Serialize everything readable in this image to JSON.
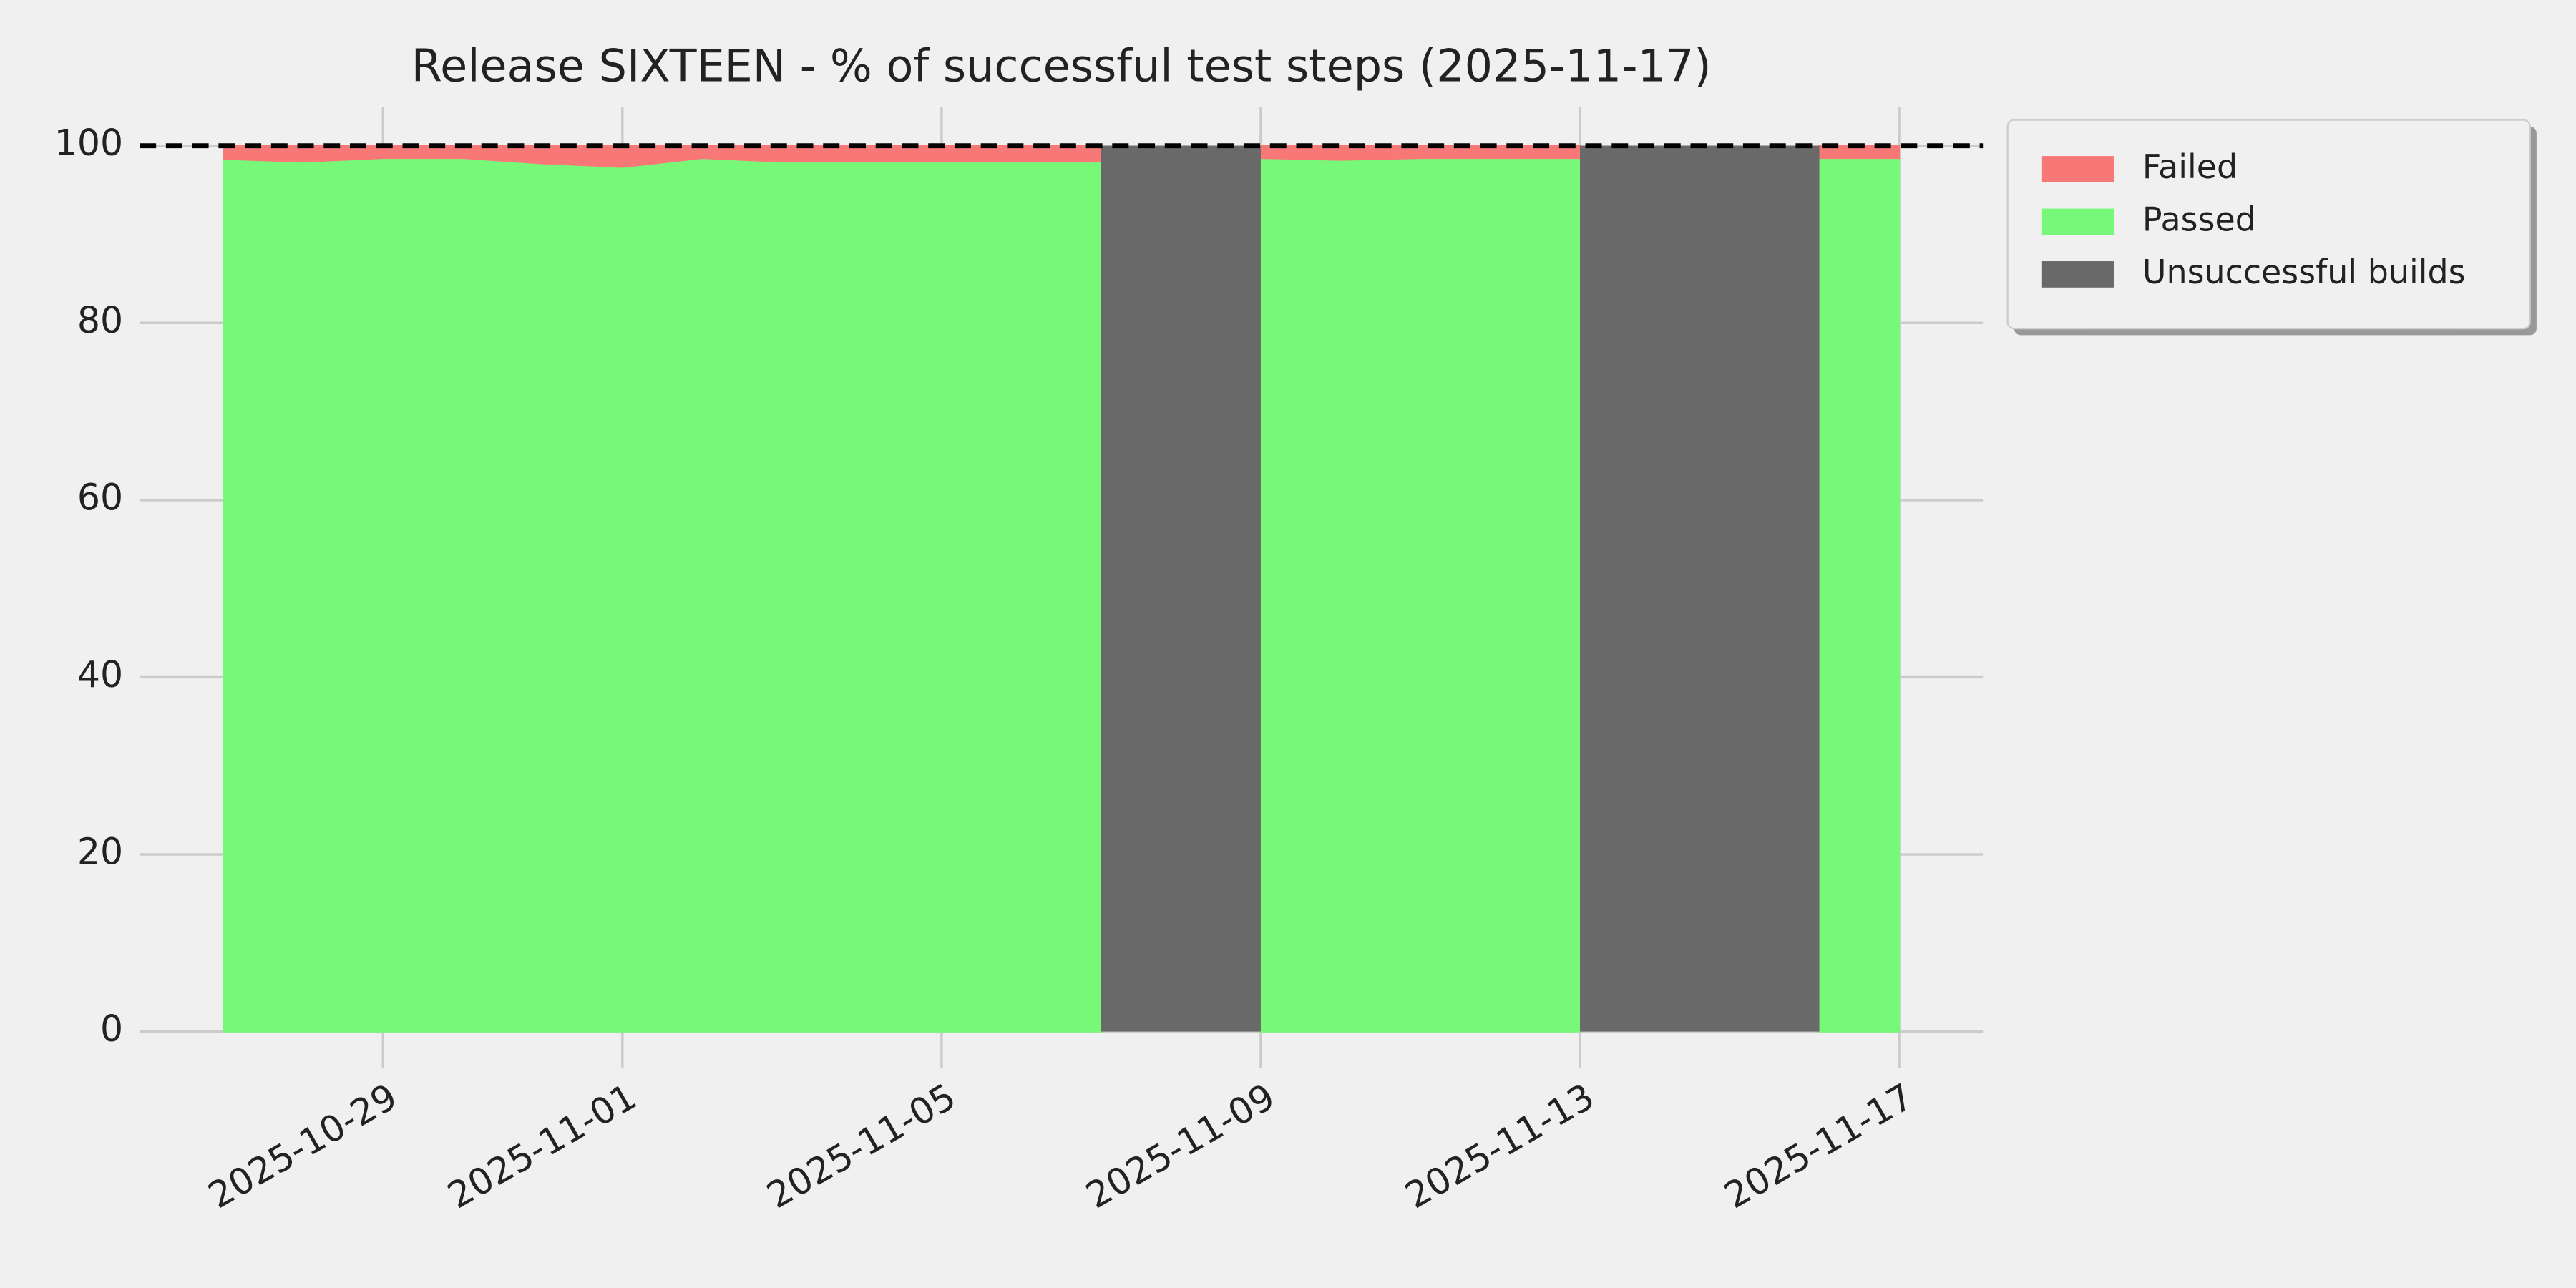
{
  "chart_data": {
    "type": "stacked_area",
    "title": "Release SIXTEEN - % of successful test steps (2025-11-17)",
    "x": [
      "2025-10-27",
      "2025-10-28",
      "2025-10-29",
      "2025-10-30",
      "2025-10-31",
      "2025-11-01",
      "2025-11-02",
      "2025-11-03",
      "2025-11-04",
      "2025-11-05",
      "2025-11-06",
      "2025-11-07",
      "2025-11-08",
      "2025-11-09",
      "2025-11-10",
      "2025-11-11",
      "2025-11-12",
      "2025-11-13",
      "2025-11-14",
      "2025-11-15",
      "2025-11-16",
      "2025-11-17"
    ],
    "series": [
      {
        "name": "Failed",
        "color": "#f87878",
        "values": [
          1.5,
          1.8,
          1.4,
          1.4,
          2.0,
          2.4,
          1.4,
          1.8,
          1.8,
          1.8,
          1.8,
          1.8,
          null,
          1.4,
          1.6,
          1.4,
          1.4,
          1.4,
          null,
          null,
          1.4,
          1.4
        ]
      },
      {
        "name": "Passed",
        "color": "#78f878",
        "values": [
          98.5,
          98.2,
          98.6,
          98.6,
          98.0,
          97.6,
          98.6,
          98.2,
          98.2,
          98.2,
          98.2,
          98.2,
          null,
          98.6,
          98.4,
          98.6,
          98.6,
          98.6,
          null,
          null,
          98.6,
          98.6
        ]
      }
    ],
    "unsuccessful_builds": {
      "name": "Unsuccessful builds",
      "color": "#696969",
      "spans": [
        {
          "start": "2025-11-07",
          "end": "2025-11-09",
          "value": 100
        },
        {
          "start": "2025-11-13",
          "end": "2025-11-16",
          "value": 100
        }
      ]
    },
    "reference_line": 100,
    "xlim": [
      "2025-10-25T22:48:00",
      "2025-11-18T01:12:00"
    ],
    "xticks": [
      "2025-10-29",
      "2025-11-01",
      "2025-11-05",
      "2025-11-09",
      "2025-11-13",
      "2025-11-17"
    ],
    "ylim": [
      -4.1,
      104.4
    ],
    "yticks": [
      0,
      20,
      40,
      60,
      80,
      100
    ],
    "grid": true,
    "legend": "outside-right"
  }
}
